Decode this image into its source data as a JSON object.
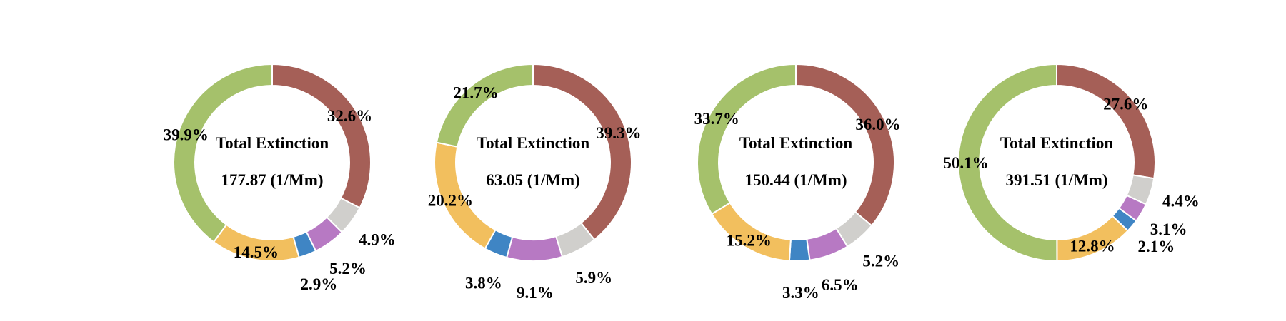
{
  "colors": {
    "brown": "#A55F57",
    "gray": "#D0CFCC",
    "purple": "#B779C3",
    "blue": "#3F85C4",
    "yellow": "#F2BF5E",
    "green": "#A5C16B"
  },
  "chart_data": [
    {
      "type": "pie",
      "variant": "donut",
      "center_title": "Total Extinction",
      "center_value": "177.87 (1/Mm)",
      "slices": [
        {
          "value": 32.6,
          "label": "32.6%",
          "color": "brown"
        },
        {
          "value": 4.9,
          "label": "4.9%",
          "color": "gray"
        },
        {
          "value": 5.2,
          "label": "5.2%",
          "color": "purple"
        },
        {
          "value": 2.9,
          "label": "2.9%",
          "color": "blue"
        },
        {
          "value": 14.5,
          "label": "14.5%",
          "color": "yellow"
        },
        {
          "value": 39.9,
          "label": "39.9%",
          "color": "green"
        }
      ]
    },
    {
      "type": "pie",
      "variant": "donut",
      "center_title": "Total Extinction",
      "center_value": "63.05 (1/Mm)",
      "slices": [
        {
          "value": 39.3,
          "label": "39.3%",
          "color": "brown"
        },
        {
          "value": 5.9,
          "label": "5.9%",
          "color": "gray"
        },
        {
          "value": 9.1,
          "label": "9.1%",
          "color": "purple"
        },
        {
          "value": 3.8,
          "label": "3.8%",
          "color": "blue"
        },
        {
          "value": 20.2,
          "label": "20.2%",
          "color": "yellow"
        },
        {
          "value": 21.7,
          "label": "21.7%",
          "color": "green"
        }
      ]
    },
    {
      "type": "pie",
      "variant": "donut",
      "center_title": "Total Extinction",
      "center_value": "150.44 (1/Mm)",
      "slices": [
        {
          "value": 36.0,
          "label": "36.0%",
          "color": "brown"
        },
        {
          "value": 5.2,
          "label": "5.2%",
          "color": "gray"
        },
        {
          "value": 6.5,
          "label": "6.5%",
          "color": "purple"
        },
        {
          "value": 3.3,
          "label": "3.3%",
          "color": "blue"
        },
        {
          "value": 15.2,
          "label": "15.2%",
          "color": "yellow"
        },
        {
          "value": 33.7,
          "label": "33.7%",
          "color": "green"
        }
      ]
    },
    {
      "type": "pie",
      "variant": "donut",
      "center_title": "Total Extinction",
      "center_value": "391.51 (1/Mm)",
      "slices": [
        {
          "value": 27.6,
          "label": "27.6%",
          "color": "brown"
        },
        {
          "value": 4.4,
          "label": "4.4%",
          "color": "gray"
        },
        {
          "value": 3.1,
          "label": "3.1%",
          "color": "purple"
        },
        {
          "value": 2.1,
          "label": "2.1%",
          "color": "blue"
        },
        {
          "value": 12.8,
          "label": "12.8%",
          "color": "yellow"
        },
        {
          "value": 50.1,
          "label": "50.1%",
          "color": "green"
        }
      ]
    }
  ]
}
